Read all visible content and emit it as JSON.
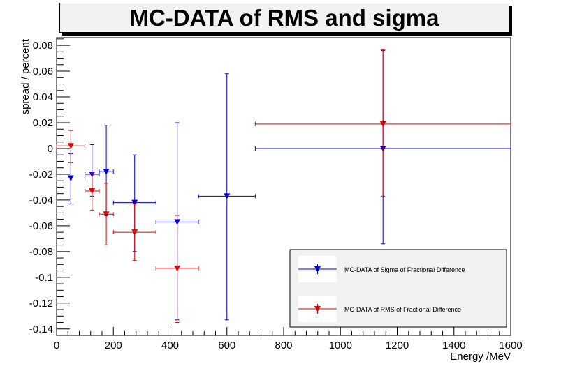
{
  "chart_data": {
    "type": "scatter",
    "title": "MC-DATA of RMS and sigma",
    "xlabel": "Energy /MeV",
    "ylabel": "spread / percent",
    "xlim": [
      0,
      1600
    ],
    "ylim": [
      -0.145,
      0.086
    ],
    "xticks": [
      0,
      200,
      400,
      600,
      800,
      1000,
      1200,
      1400,
      1600
    ],
    "xtick_labels": [
      "0",
      "200",
      "400",
      "600",
      "800",
      "1000",
      "1200",
      "1400",
      "1600"
    ],
    "yticks": [
      -0.14,
      -0.12,
      -0.1,
      -0.08,
      -0.06,
      -0.04,
      -0.02,
      0,
      0.02,
      0.04,
      0.06,
      0.08
    ],
    "ytick_labels": [
      "-0.14",
      "-0.12",
      "-0.1",
      "-0.08",
      "-0.06",
      "-0.04",
      "-0.02",
      "0",
      "0.02",
      "0.04",
      "0.06",
      "0.08"
    ],
    "grid": false,
    "legend_position": "bottom-right",
    "series": [
      {
        "name": "MC-DATA of Sigma of Fractional Difference",
        "color": "#0000cc",
        "marker": "triangle-down",
        "points": [
          {
            "x": 50,
            "xlo": 0,
            "xhi": 100,
            "y": -0.023,
            "ylo": -0.043,
            "yhi": -0.004
          },
          {
            "x": 125,
            "xlo": 100,
            "xhi": 150,
            "y": -0.02,
            "ylo": -0.037,
            "yhi": 0.003
          },
          {
            "x": 175,
            "xlo": 150,
            "xhi": 200,
            "y": -0.018,
            "ylo": -0.052,
            "yhi": 0.018
          },
          {
            "x": 275,
            "xlo": 200,
            "xhi": 350,
            "y": -0.042,
            "ylo": -0.08,
            "yhi": -0.005
          },
          {
            "x": 425,
            "xlo": 350,
            "xhi": 500,
            "y": -0.057,
            "ylo": -0.133,
            "yhi": 0.02
          },
          {
            "x": 600,
            "xlo": 500,
            "xhi": 700,
            "y": -0.037,
            "ylo": -0.133,
            "yhi": 0.058
          },
          {
            "x": 1150,
            "xlo": 700,
            "xhi": 1600,
            "y": 0.0,
            "ylo": -0.074,
            "yhi": 0.076
          }
        ]
      },
      {
        "name": "MC-DATA of RMS of Fractional Difference",
        "color": "#dd0000",
        "marker": "triangle-down",
        "points": [
          {
            "x": 50,
            "xlo": 0,
            "xhi": 100,
            "y": 0.002,
            "ylo": -0.011,
            "yhi": 0.014
          },
          {
            "x": 125,
            "xlo": 100,
            "xhi": 150,
            "y": -0.033,
            "ylo": -0.048,
            "yhi": -0.019
          },
          {
            "x": 175,
            "xlo": 150,
            "xhi": 200,
            "y": -0.051,
            "ylo": -0.075,
            "yhi": -0.027
          },
          {
            "x": 275,
            "xlo": 200,
            "xhi": 350,
            "y": -0.065,
            "ylo": -0.087,
            "yhi": -0.043
          },
          {
            "x": 425,
            "xlo": 350,
            "xhi": 500,
            "y": -0.093,
            "ylo": -0.135,
            "yhi": -0.052
          },
          {
            "x": 1150,
            "xlo": 700,
            "xhi": 1600,
            "y": 0.019,
            "ylo": -0.037,
            "yhi": 0.077
          }
        ]
      }
    ]
  }
}
